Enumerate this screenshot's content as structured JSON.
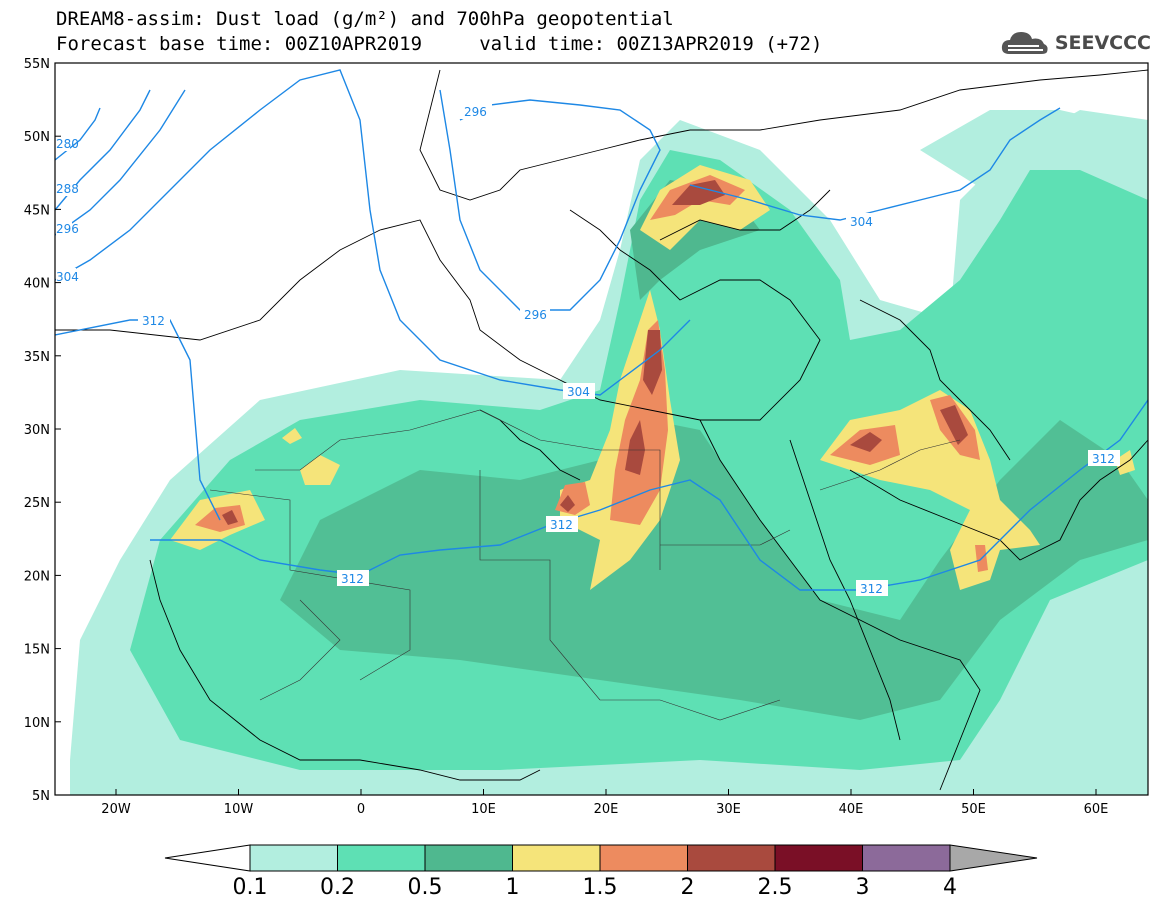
{
  "header": {
    "title_line1": "DREAM8-assim: Dust load (g/m²) and 700hPa geopotential",
    "title_line2": "Forecast base time: 00Z10APR2019     valid time: 00Z13APR2019 (+72)",
    "brand": "SEEVCCC",
    "brand_icon": "cloud-icon"
  },
  "map": {
    "lat_labels": [
      "55N",
      "50N",
      "45N",
      "40N",
      "35N",
      "30N",
      "25N",
      "20N",
      "15N",
      "10N",
      "5N"
    ],
    "lon_labels": [
      "20W",
      "10W",
      "0",
      "10E",
      "20E",
      "30E",
      "40E",
      "50E",
      "60E"
    ],
    "contour_labels": [
      "296",
      "304",
      "312",
      "288",
      "280",
      "304",
      "296",
      "296",
      "304",
      "312",
      "312",
      "312",
      "312"
    ]
  },
  "colorbar": {
    "levels": [
      "0.1",
      "0.2",
      "0.5",
      "1",
      "1.5",
      "2",
      "2.5",
      "3",
      "4"
    ],
    "colors": [
      "#b2eedf",
      "#5ee0b4",
      "#4fb88f",
      "#f5e47a",
      "#ed8b5f",
      "#a94a3e",
      "#7a0f26",
      "#8c6a9a",
      "#a8a8a8"
    ],
    "low_color": "#ffffff"
  },
  "colors": {
    "contour": "#1e88e5",
    "land_line": "#000000"
  }
}
